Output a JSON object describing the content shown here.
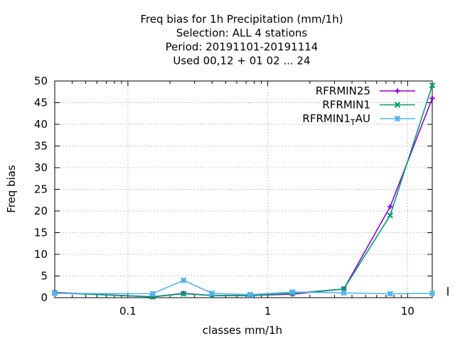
{
  "chart_data": {
    "type": "line",
    "title_lines": [
      "Freq bias  for 1h Precipitation (mm/1h)",
      "Selection: ALL      4 stations",
      "Period: 20191101-20191114",
      "Used  00,12  + 01 02 ... 24"
    ],
    "xlabel": "classes mm/1h",
    "ylabel": "Freq bias",
    "x_scale": "log",
    "xlim": [
      0.03,
      15
    ],
    "ylim": [
      0,
      50
    ],
    "x_ticks": [
      {
        "value": 0.1,
        "label": "0.1"
      },
      {
        "value": 1,
        "label": "1"
      },
      {
        "value": 10,
        "label": "10"
      }
    ],
    "y_ticks": [
      {
        "value": 0,
        "label": "0"
      },
      {
        "value": 5,
        "label": "5"
      },
      {
        "value": 10,
        "label": "10"
      },
      {
        "value": 15,
        "label": "15"
      },
      {
        "value": 20,
        "label": "20"
      },
      {
        "value": 25,
        "label": "25"
      },
      {
        "value": 30,
        "label": "30"
      },
      {
        "value": 35,
        "label": "35"
      },
      {
        "value": 40,
        "label": "40"
      },
      {
        "value": 45,
        "label": "45"
      },
      {
        "value": 50,
        "label": "50"
      }
    ],
    "grid": true,
    "legend_position": "top-right",
    "x": [
      0.03,
      0.15,
      0.25,
      0.4,
      0.75,
      1.5,
      3.5,
      7.5,
      15
    ],
    "series": [
      {
        "name": "RFRMIN25",
        "name_main": "RFRMIN25",
        "name_sub": "",
        "name_tail": "",
        "color": "#9400d3",
        "marker": "plus",
        "values": [
          1.2,
          0.2,
          1.0,
          0.5,
          0.5,
          0.8,
          2.0,
          21.0,
          46.0
        ]
      },
      {
        "name": "RFRMIN1",
        "name_main": "RFRMIN1",
        "name_sub": "",
        "name_tail": "",
        "color": "#009e73",
        "marker": "cross",
        "values": [
          1.1,
          0.2,
          0.9,
          0.5,
          0.5,
          1.0,
          2.0,
          19.0,
          49.0
        ]
      },
      {
        "name": "RFRMIN1_AU",
        "name_main": "RFRMIN1",
        "name_sub": "T",
        "name_tail": "AU",
        "color": "#56b4e9",
        "marker": "star",
        "values": [
          1.0,
          0.9,
          4.0,
          1.0,
          0.7,
          1.3,
          1.1,
          0.9,
          1.0
        ]
      }
    ]
  }
}
